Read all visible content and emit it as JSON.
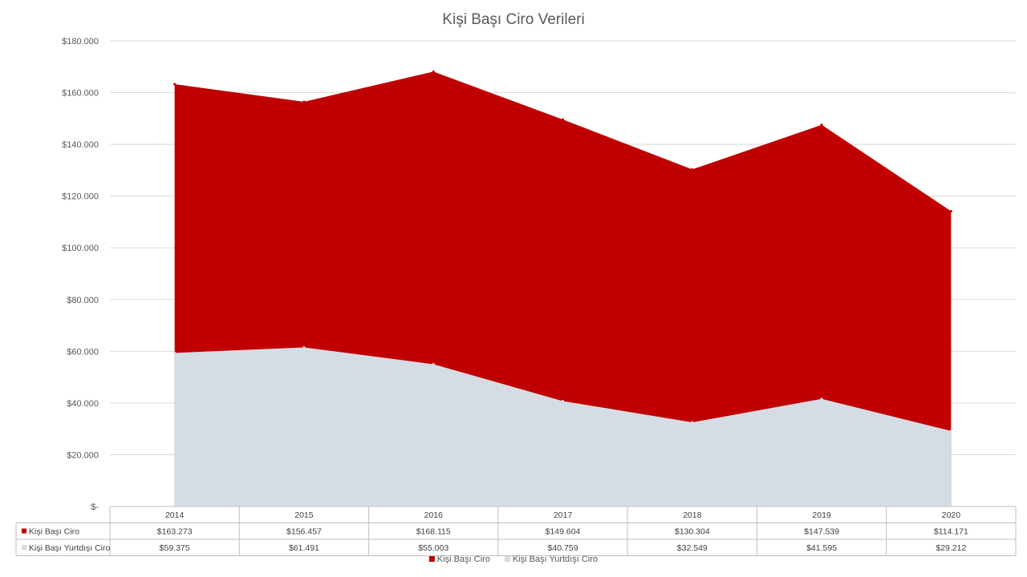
{
  "chart_data": {
    "type": "area",
    "title": "Kişi Başı Ciro Verileri",
    "categories": [
      "2014",
      "2015",
      "2016",
      "2017",
      "2018",
      "2019",
      "2020"
    ],
    "ylim": [
      0,
      180000
    ],
    "y_ticks": [
      0,
      20000,
      40000,
      60000,
      80000,
      100000,
      120000,
      140000,
      160000,
      180000
    ],
    "y_tick_labels": [
      "$-",
      "$20.000",
      "$40.000",
      "$60.000",
      "$80.000",
      "$100.000",
      "$120.000",
      "$140.000",
      "$160.000",
      "$180.000"
    ],
    "grid": true,
    "legend_position": "bottom",
    "series": [
      {
        "name": "Kişi Başı Ciro",
        "color": "#c00000",
        "values": [
          163273,
          156457,
          168115,
          149604,
          130304,
          147539,
          114171
        ],
        "labels": [
          "$163.273",
          "$156.457",
          "$168.115",
          "$149.604",
          "$130.304",
          "$147.539",
          "$114.171"
        ]
      },
      {
        "name": "Kişi Başı Yurtdışı Ciro",
        "color": "#d6dce4",
        "values": [
          59375,
          61491,
          55003,
          40759,
          32549,
          41595,
          29212
        ],
        "labels": [
          "$59.375",
          "$61.491",
          "$55.003",
          "$40.759",
          "$32.549",
          "$41.595",
          "$29.212"
        ]
      }
    ]
  }
}
